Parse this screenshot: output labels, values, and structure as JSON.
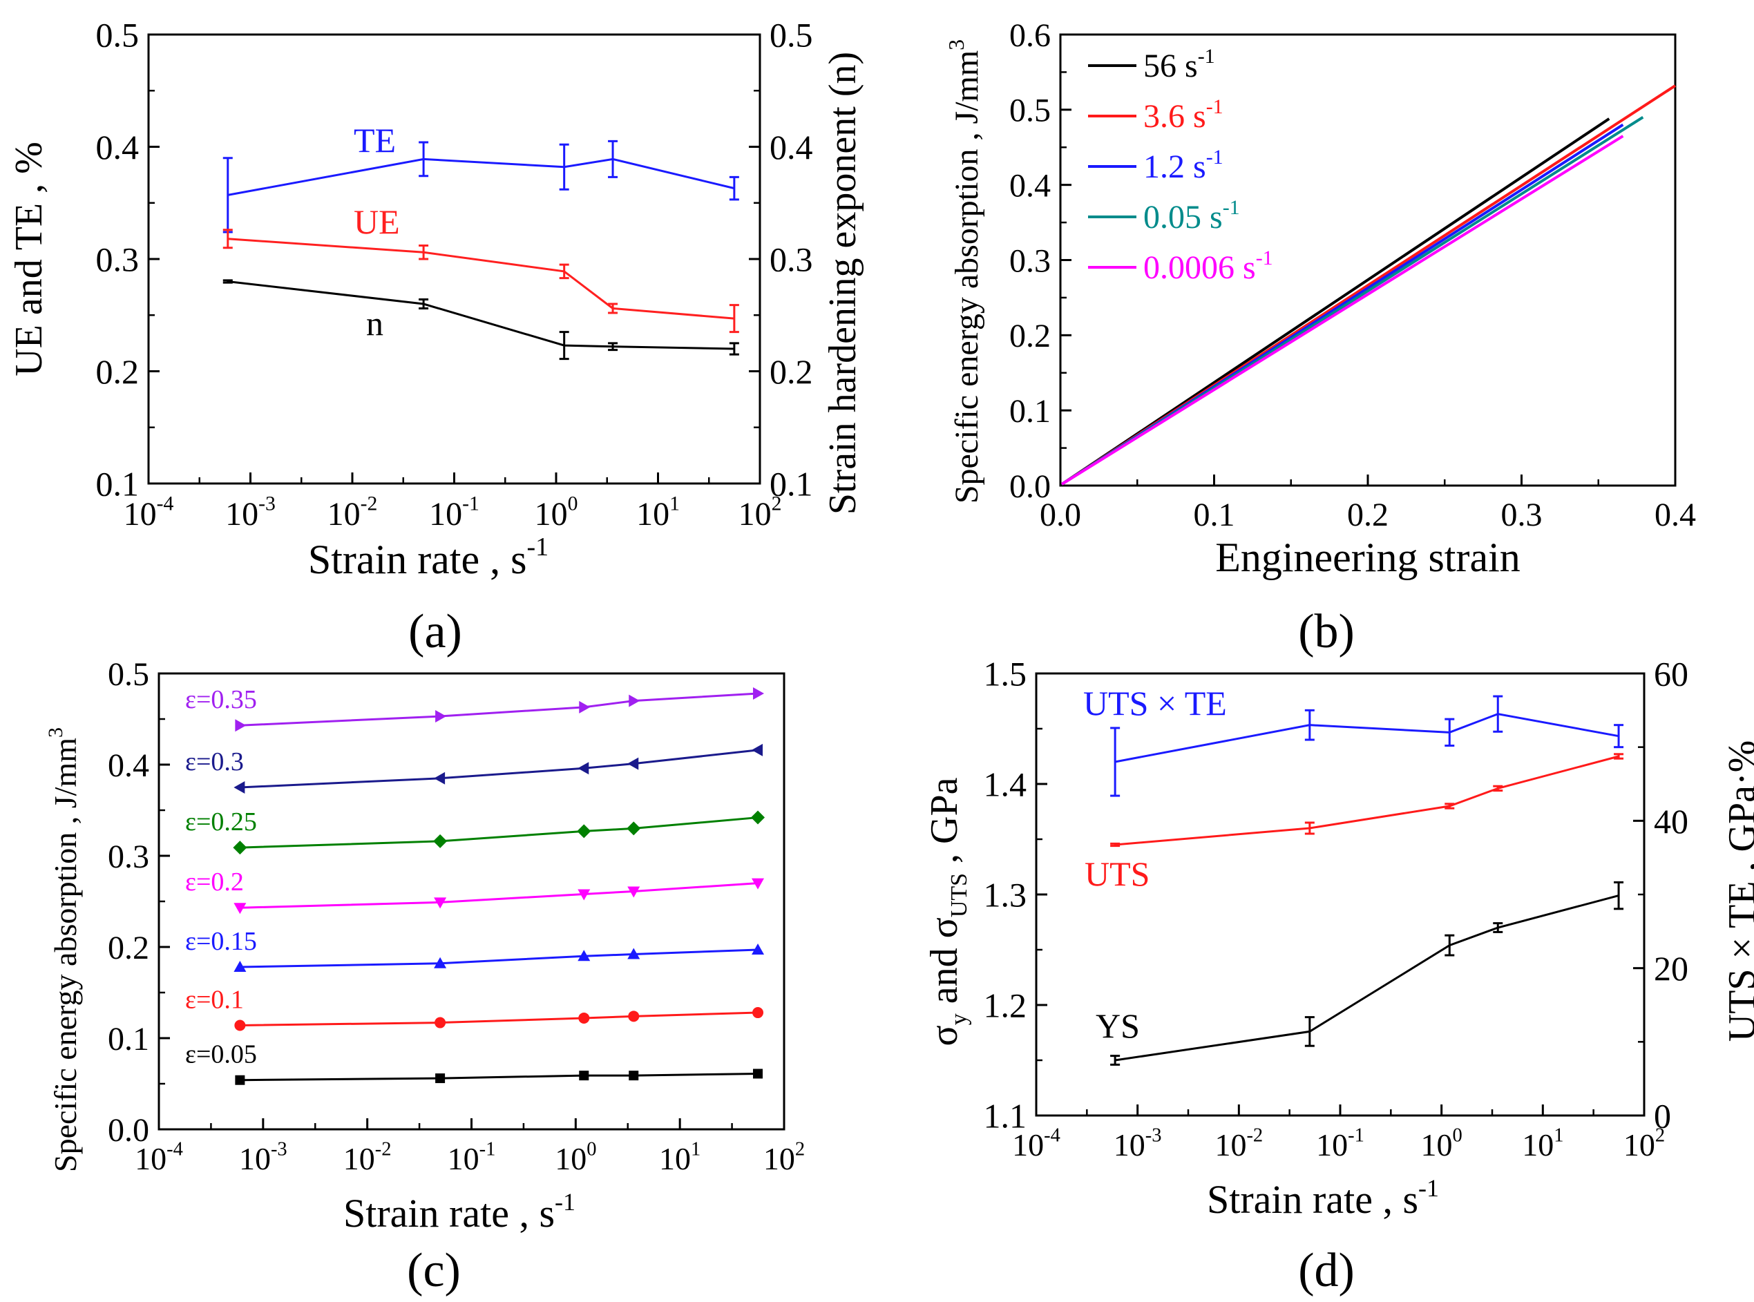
{
  "panels": {
    "a": {
      "label": "(a)"
    },
    "b": {
      "label": "(b)"
    },
    "c": {
      "label": "(c)"
    },
    "d": {
      "label": "(d)"
    }
  },
  "chart_data": [
    {
      "id": "a",
      "type": "line",
      "xscale": "log",
      "xlim": [
        0.0001,
        100
      ],
      "xticks": [
        -4,
        -3,
        -2,
        -1,
        0,
        1,
        2
      ],
      "xlabel": "Strain rate , s",
      "xlabel_sup": "-1",
      "ylim": [
        0.1,
        0.5
      ],
      "yticks": [
        "0.1",
        "0.2",
        "0.3",
        "0.4",
        "0.5"
      ],
      "ylabel": "UE and TE , %",
      "y2lim": [
        0.1,
        0.5
      ],
      "y2ticks": [
        "0.1",
        "0.2",
        "0.3",
        "0.4",
        "0.5"
      ],
      "y2label": "Strain hardening exponent (n)",
      "series": [
        {
          "name": "TE",
          "color": "#1a1aff",
          "x": [
            0.0006,
            0.05,
            1.2,
            3.6,
            56
          ],
          "y": [
            0.357,
            0.389,
            0.382,
            0.389,
            0.363
          ],
          "err": [
            0.033,
            0.015,
            0.02,
            0.016,
            0.01
          ]
        },
        {
          "name": "UE",
          "color": "#ff2020",
          "x": [
            0.0006,
            0.05,
            1.2,
            3.6,
            56
          ],
          "y": [
            0.318,
            0.306,
            0.289,
            0.256,
            0.247
          ],
          "err": [
            0.008,
            0.006,
            0.006,
            0.004,
            0.012
          ]
        },
        {
          "name": "n",
          "color": "#000000",
          "x": [
            0.0006,
            0.05,
            1.2,
            3.6,
            56
          ],
          "y": [
            0.28,
            0.26,
            0.223,
            0.222,
            0.22
          ],
          "err": [
            0.001,
            0.004,
            0.012,
            0.003,
            0.005
          ]
        }
      ],
      "annotations": [
        {
          "text": "TE",
          "color": "#1a1aff"
        },
        {
          "text": "UE",
          "color": "#ff2020"
        },
        {
          "text": "n",
          "color": "#000000"
        }
      ]
    },
    {
      "id": "b",
      "type": "line",
      "xlim": [
        0,
        0.4
      ],
      "xticks": [
        "0.0",
        "0.1",
        "0.2",
        "0.3",
        "0.4"
      ],
      "xlabel": "Engineering strain",
      "ylim": [
        0,
        0.6
      ],
      "yticks": [
        "0.0",
        "0.1",
        "0.2",
        "0.3",
        "0.4",
        "0.5",
        "0.6"
      ],
      "ylabel": "Specific energy absorption , J/mm",
      "ylabel_sup": "3",
      "legend_position": "top-left",
      "series": [
        {
          "name": "56 s",
          "sup": "-1",
          "color": "#000000",
          "end": [
            0.357,
            0.488
          ]
        },
        {
          "name": "3.6 s",
          "sup": "-1",
          "color": "#ff1a1a",
          "end": [
            0.4,
            0.532
          ]
        },
        {
          "name": "1.2 s",
          "sup": "-1",
          "color": "#1a1aff",
          "end": [
            0.366,
            0.48
          ]
        },
        {
          "name": "0.05 s",
          "sup": "-1",
          "color": "#008b8b",
          "end": [
            0.379,
            0.49
          ]
        },
        {
          "name": "0.0006 s",
          "sup": "-1",
          "color": "#ff00ff",
          "end": [
            0.366,
            0.465
          ]
        }
      ]
    },
    {
      "id": "c",
      "type": "line",
      "xscale": "log",
      "xlim": [
        0.0001,
        100
      ],
      "xticks": [
        -4,
        -3,
        -2,
        -1,
        0,
        1,
        2
      ],
      "xlabel": "Strain rate , s",
      "xlabel_sup": "-1",
      "ylim": [
        0,
        0.5
      ],
      "yticks": [
        "0.0",
        "0.1",
        "0.2",
        "0.3",
        "0.4",
        "0.5"
      ],
      "ylabel": "Specific energy absorption , J/mm",
      "ylabel_sup": "3",
      "x": [
        0.0006,
        0.05,
        1.2,
        3.6,
        56
      ],
      "series": [
        {
          "name": "ε=0.35",
          "color": "#a020f0",
          "marker": "triangle-right",
          "values": [
            0.443,
            0.453,
            0.463,
            0.47,
            0.478
          ]
        },
        {
          "name": "ε=0.3",
          "color": "#1a1a8c",
          "marker": "triangle-left",
          "values": [
            0.375,
            0.385,
            0.396,
            0.401,
            0.416
          ]
        },
        {
          "name": "ε=0.25",
          "color": "#008000",
          "marker": "diamond",
          "values": [
            0.309,
            0.316,
            0.327,
            0.33,
            0.342
          ]
        },
        {
          "name": "ε=0.2",
          "color": "#ff00ff",
          "marker": "triangle-down",
          "values": [
            0.243,
            0.249,
            0.258,
            0.261,
            0.27
          ]
        },
        {
          "name": "ε=0.15",
          "color": "#1a1aff",
          "marker": "triangle-up",
          "values": [
            0.178,
            0.182,
            0.19,
            0.192,
            0.197
          ]
        },
        {
          "name": "ε=0.1",
          "color": "#ff1a1a",
          "marker": "circle",
          "values": [
            0.114,
            0.117,
            0.122,
            0.124,
            0.128
          ]
        },
        {
          "name": "ε=0.05",
          "color": "#000000",
          "marker": "square",
          "values": [
            0.054,
            0.056,
            0.059,
            0.059,
            0.061
          ]
        }
      ]
    },
    {
      "id": "d",
      "type": "line",
      "xscale": "log",
      "xlim": [
        0.0001,
        100
      ],
      "xticks": [
        -4,
        -3,
        -2,
        -1,
        0,
        1,
        2
      ],
      "xlabel": "Strain rate , s",
      "xlabel_sup": "-1",
      "ylim": [
        1.1,
        1.5
      ],
      "yticks": [
        "1.1",
        "1.2",
        "1.3",
        "1.4",
        "1.5"
      ],
      "ylabel_parts": [
        "σ",
        "y",
        " and σ",
        "UTS",
        " , GPa"
      ],
      "y2lim": [
        0,
        60
      ],
      "y2ticks": [
        "0",
        "20",
        "40",
        "60"
      ],
      "y2label": "UTS × TE , GPa·%",
      "series": [
        {
          "name": "UTS × TE",
          "axis": "right",
          "color": "#1a1aff",
          "x": [
            0.0006,
            0.05,
            1.2,
            3.6,
            56
          ],
          "y": [
            48,
            53,
            52,
            54.5,
            51.5
          ],
          "err": [
            4.6,
            2,
            1.8,
            2.4,
            1.5
          ]
        },
        {
          "name": "UTS",
          "axis": "left",
          "color": "#ff1a1a",
          "x": [
            0.0006,
            0.05,
            1.2,
            3.6,
            56
          ],
          "y": [
            1.345,
            1.36,
            1.38,
            1.396,
            1.425
          ],
          "err": [
            0.001,
            0.005,
            0.002,
            0.002,
            0.002
          ]
        },
        {
          "name": "YS",
          "axis": "left",
          "color": "#000000",
          "x": [
            0.0006,
            0.05,
            1.2,
            3.6,
            56
          ],
          "y": [
            1.15,
            1.176,
            1.254,
            1.27,
            1.299
          ],
          "err": [
            0.004,
            0.013,
            0.009,
            0.004,
            0.012
          ]
        }
      ],
      "annotations": [
        {
          "text": "UTS × TE",
          "color": "#1a1aff"
        },
        {
          "text": "UTS",
          "color": "#ff1a1a"
        },
        {
          "text": "YS",
          "color": "#000000"
        }
      ]
    }
  ]
}
